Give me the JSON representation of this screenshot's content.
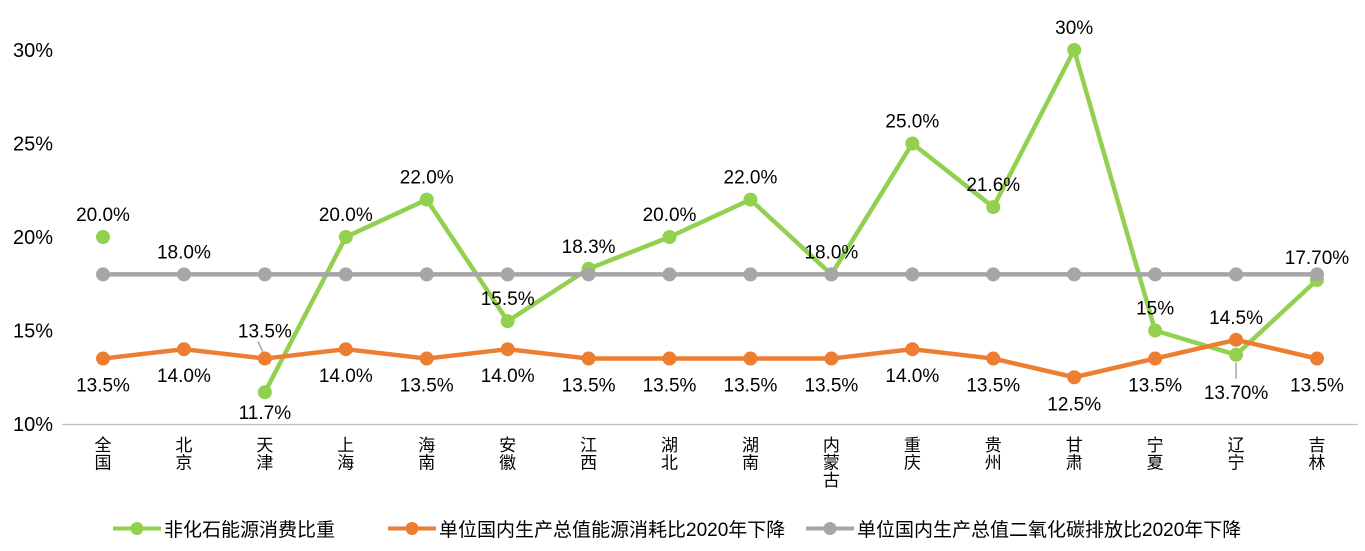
{
  "chart_data": {
    "type": "line",
    "title": "",
    "categories": [
      "全国",
      "北京",
      "天津",
      "上海",
      "海南",
      "安徽",
      "江西",
      "湖北",
      "湖南",
      "内蒙古",
      "重庆",
      "贵州",
      "甘肃",
      "宁夏",
      "辽宁",
      "吉林"
    ],
    "y_axis": {
      "tick_labels": [
        "30%",
        "25%",
        "20%",
        "15%",
        "10%"
      ],
      "tick_values": [
        30,
        25,
        20,
        15,
        10
      ],
      "min": 10,
      "max": 30,
      "grid": false
    },
    "series": [
      {
        "name": "非化石能源消费比重",
        "color": "#92D050",
        "values": [
          20.0,
          null,
          11.7,
          20.0,
          22.0,
          15.5,
          18.3,
          20.0,
          22.0,
          18.0,
          25.0,
          21.6,
          30,
          15,
          13.7,
          17.7
        ],
        "labels": [
          "20.0%",
          null,
          "11.7%",
          "20.0%",
          "22.0%",
          "15.5%",
          "18.3%",
          "20.0%",
          "22.0%",
          "18.0%",
          "25.0%",
          "21.6%",
          "30%",
          "15%",
          "13.70%",
          "17.70%"
        ],
        "label_side": [
          "above",
          null,
          "below_near",
          "above",
          "above",
          "above",
          "above",
          "above",
          "above",
          "above",
          "above",
          "above",
          "above",
          "above",
          "below_leader",
          "above"
        ]
      },
      {
        "name": "单位国内生产总值能源消耗比2020年下降",
        "color": "#ED7D31",
        "values": [
          13.5,
          14.0,
          13.5,
          14.0,
          13.5,
          14.0,
          13.5,
          13.5,
          13.5,
          13.5,
          14.0,
          13.5,
          12.5,
          13.5,
          14.5,
          13.5
        ],
        "labels": [
          "13.5%",
          "14.0%",
          "13.5%",
          "14.0%",
          "13.5%",
          "14.0%",
          "13.5%",
          "13.5%",
          "13.5%",
          "13.5%",
          "14.0%",
          "13.5%",
          "12.5%",
          "13.5%",
          "14.5%",
          "13.5%"
        ],
        "label_side": [
          "below",
          "below",
          "above_leader",
          "below",
          "below",
          "below",
          "below",
          "below",
          "below",
          "below",
          "below",
          "below",
          "below",
          "below",
          "above",
          "below"
        ]
      },
      {
        "name": "单位国内生产总值二氧化碳排放比2020年下降",
        "color": "#A6A6A6",
        "values": [
          18,
          18,
          18,
          18,
          18,
          18,
          18,
          18,
          18,
          18,
          18,
          18,
          18,
          18,
          18,
          18
        ],
        "labels": [
          null,
          "18.0%",
          null,
          null,
          null,
          null,
          null,
          null,
          null,
          null,
          null,
          null,
          null,
          null,
          null,
          null
        ],
        "label_side": [
          null,
          "above",
          null,
          null,
          null,
          null,
          null,
          null,
          null,
          null,
          null,
          null,
          null,
          null,
          null,
          null
        ]
      }
    ],
    "legend_position": "bottom",
    "style": {
      "axis_line_color": "#BFBFBF",
      "leader_line_color": "#A6A6A6",
      "text_color": "#000000",
      "background": "#FFFFFF"
    }
  }
}
